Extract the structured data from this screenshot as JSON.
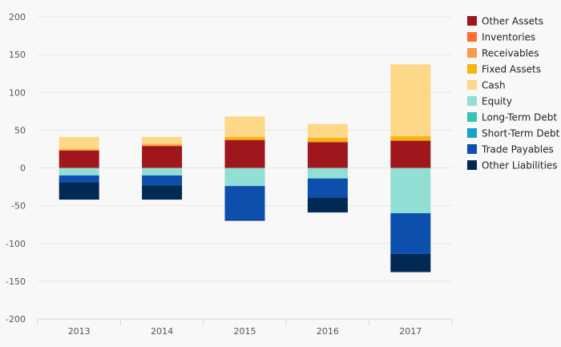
{
  "chart_data": {
    "type": "bar",
    "stacked": true,
    "categories": [
      "2013",
      "2014",
      "2015",
      "2016",
      "2017"
    ],
    "ylim": [
      -200,
      200
    ],
    "y_ticks": [
      -200,
      -150,
      -100,
      -50,
      0,
      50,
      100,
      150,
      200
    ],
    "grid": true,
    "legend_position": "right",
    "series": [
      {
        "name": "Other Assets",
        "color": "#a0161d",
        "values": [
          23,
          29,
          37,
          34,
          36
        ]
      },
      {
        "name": "Inventories",
        "color": "#ff6d2e",
        "values": [
          0,
          0,
          0,
          0,
          0
        ]
      },
      {
        "name": "Receivables",
        "color": "#fa9a4a",
        "values": [
          1,
          2,
          0,
          1,
          0
        ]
      },
      {
        "name": "Fixed Assets",
        "color": "#f8b30f",
        "values": [
          1,
          1,
          4,
          5,
          6
        ]
      },
      {
        "name": "Cash",
        "color": "#fdd888",
        "values": [
          16,
          9,
          27,
          18,
          95
        ]
      },
      {
        "name": "Equity",
        "color": "#90ded4",
        "values": [
          -10,
          -10,
          -24,
          -14,
          -60
        ]
      },
      {
        "name": "Long-Term Debt",
        "color": "#36c3b0",
        "values": [
          0,
          0,
          0,
          0,
          0
        ]
      },
      {
        "name": "Short-Term Debt",
        "color": "#15a2cb",
        "values": [
          0,
          0,
          0,
          0,
          0
        ]
      },
      {
        "name": "Trade Payables",
        "color": "#0d4fad",
        "values": [
          -9,
          -13,
          -45,
          -25,
          -54
        ]
      },
      {
        "name": "Other Liabilities",
        "color": "#012954",
        "values": [
          -23,
          -19,
          -1,
          -20,
          -24
        ]
      }
    ]
  }
}
